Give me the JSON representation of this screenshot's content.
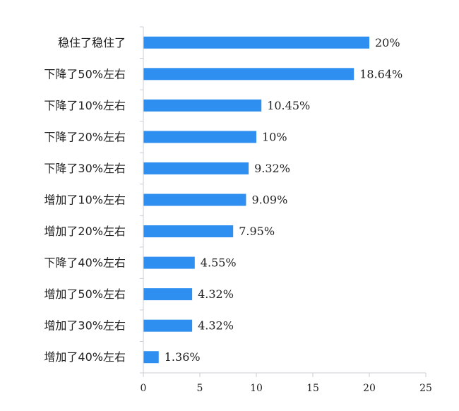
{
  "chart_data": {
    "type": "bar",
    "orientation": "horizontal",
    "categories": [
      "稳住了稳住了",
      "下降了50%左右",
      "下降了10%左右",
      "下降了20%左右",
      "下降了30%左右",
      "增加了10%左右",
      "增加了20%左右",
      "下降了40%左右",
      "增加了50%左右",
      "增加了30%左右",
      "增加了40%左右"
    ],
    "values": [
      20,
      18.64,
      10.45,
      10,
      9.32,
      9.09,
      7.95,
      4.55,
      4.32,
      4.32,
      1.36
    ],
    "value_labels": [
      "20%",
      "18.64%",
      "10.45%",
      "10%",
      "9.32%",
      "9.09%",
      "7.95%",
      "4.55%",
      "4.32%",
      "4.32%",
      "1.36%"
    ],
    "title": "",
    "xlabel": "",
    "ylabel": "",
    "xlim": [
      0,
      25
    ],
    "x_ticks": [
      "0",
      "5",
      "10",
      "15",
      "20",
      "25"
    ],
    "grid": false,
    "legend": "none",
    "bar_color": "#2f8ff0"
  }
}
